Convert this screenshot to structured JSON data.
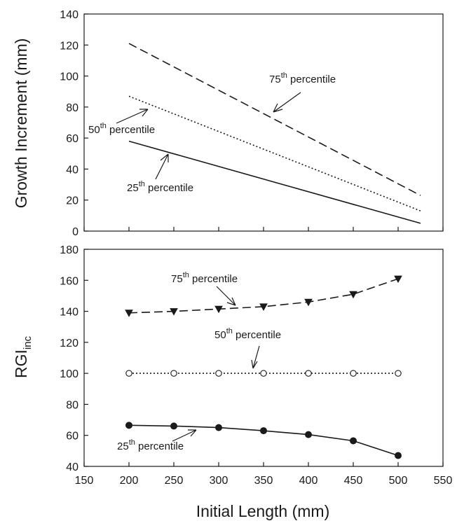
{
  "chart_data": [
    {
      "type": "line",
      "title": "",
      "ylabel": "Growth Increment (mm)",
      "xlim": [
        150,
        550
      ],
      "ylim": [
        0,
        140
      ],
      "x_ticks": [
        150,
        200,
        250,
        300,
        350,
        400,
        450,
        500,
        550
      ],
      "y_ticks": [
        0,
        20,
        40,
        60,
        80,
        100,
        120,
        140
      ],
      "x_ticks_labeled": false,
      "grid": false,
      "series": [
        {
          "name": "75th percentile",
          "style": "dashed",
          "x": [
            200,
            525
          ],
          "values": [
            121,
            23
          ]
        },
        {
          "name": "50th percentile",
          "style": "dotted",
          "x": [
            200,
            525
          ],
          "values": [
            87,
            13
          ]
        },
        {
          "name": "25th percentile",
          "style": "solid",
          "x": [
            200,
            525
          ],
          "values": [
            58,
            5
          ]
        }
      ],
      "annotations": [
        {
          "base": "75",
          "sup": "th",
          "rest": " percentile"
        },
        {
          "base": "50",
          "sup": "th",
          "rest": " percentile"
        },
        {
          "base": "25",
          "sup": "th",
          "rest": " percentile"
        }
      ]
    },
    {
      "type": "line",
      "title": "",
      "ylabel": {
        "base": "RGI",
        "sub": "inc"
      },
      "xlabel": "Initial Length (mm)",
      "xlim": [
        150,
        550
      ],
      "ylim": [
        40,
        180
      ],
      "x_ticks": [
        150,
        200,
        250,
        300,
        350,
        400,
        450,
        500,
        550
      ],
      "y_ticks": [
        40,
        60,
        80,
        100,
        120,
        140,
        160,
        180
      ],
      "grid": false,
      "series": [
        {
          "name": "75th percentile",
          "style": "dashed",
          "marker": "triangle-down",
          "x": [
            200,
            250,
            300,
            350,
            400,
            450,
            500
          ],
          "values": [
            139,
            140,
            141.5,
            143,
            146,
            151,
            161
          ]
        },
        {
          "name": "50th percentile",
          "style": "dotted",
          "marker": "open-circle",
          "x": [
            200,
            250,
            300,
            350,
            400,
            450,
            500
          ],
          "values": [
            100,
            100,
            100,
            100,
            100,
            100,
            100
          ]
        },
        {
          "name": "25th percentile",
          "style": "solid",
          "marker": "filled-circle",
          "x": [
            200,
            250,
            300,
            350,
            400,
            450,
            500
          ],
          "values": [
            66.5,
            66,
            65,
            63,
            60.5,
            56.5,
            47
          ]
        }
      ],
      "annotations": [
        {
          "base": "75",
          "sup": "th",
          "rest": " percentile"
        },
        {
          "base": "50",
          "sup": "th",
          "rest": " percentile"
        },
        {
          "base": "25",
          "sup": "th",
          "rest": " percentile"
        }
      ]
    }
  ],
  "colors": {
    "ink": "#1a1a1a",
    "background": "#ffffff"
  }
}
